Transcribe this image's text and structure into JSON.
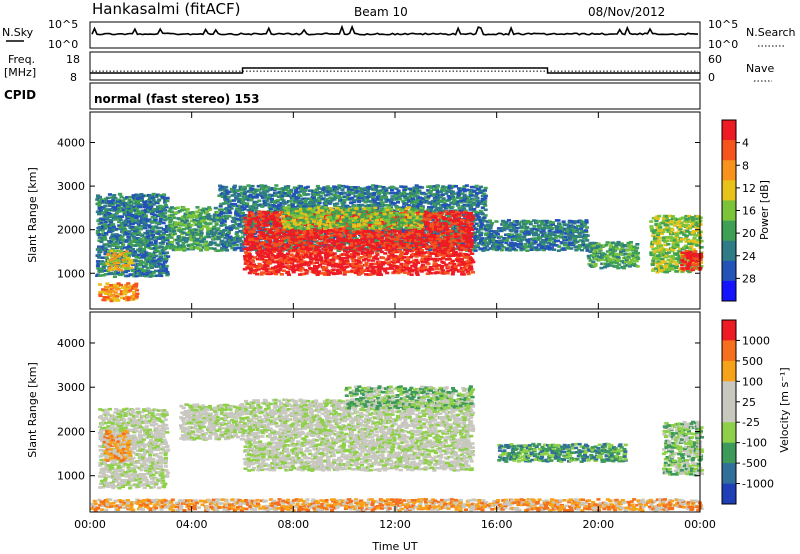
{
  "header": {
    "station": "Hankasalmi (fitACF)",
    "beam": "Beam 10",
    "date": "08/Nov/2012"
  },
  "strip_panels": {
    "nsky_label": "N.Sky",
    "nsky_ticks": [
      "10^5",
      "10^0"
    ],
    "nsearch_label": "N.Search",
    "nsearch_ticks": [
      "10^5",
      "10^0"
    ],
    "freq_label_line1": "Freq.",
    "freq_label_line2": "[MHz]",
    "freq_ticks": [
      "18",
      "8"
    ],
    "nave_label": "Nave",
    "nave_ticks": [
      "60",
      "0"
    ],
    "cpid_label": "CPID",
    "cpid_text": "normal (fast stereo) 153",
    "freq_level_mhz": [
      {
        "start": "00:00",
        "end": "06:00",
        "value": 10.5
      },
      {
        "start": "06:00",
        "end": "18:00",
        "value": 12.3
      },
      {
        "start": "18:00",
        "end": "24:00",
        "value": 10.5
      }
    ],
    "nave_level": 19
  },
  "chart_data": [
    {
      "type": "heatmap",
      "name": "power-panel",
      "ylabel": "Slant Range [km]",
      "xlabel": "",
      "xticks": [
        "00:00",
        "04:00",
        "08:00",
        "12:00",
        "16:00",
        "20:00",
        "00:00"
      ],
      "yticks": [
        "1000",
        "2000",
        "3000",
        "4000"
      ],
      "xlim_hours": [
        0,
        24
      ],
      "ylim_km": [
        180,
        4700
      ],
      "colorbar": {
        "label": "Power [dB]",
        "tick_labels": [
          "4",
          "8",
          "12",
          "16",
          "20",
          "24",
          "28"
        ],
        "range": [
          0,
          32
        ],
        "colors": [
          "#1414ff",
          "#2353b7",
          "#2f7c86",
          "#3ea055",
          "#7bc43a",
          "#e6c21b",
          "#f7921c",
          "#f5551d",
          "#ee1b24"
        ]
      },
      "regions": [
        {
          "t0": 0.2,
          "t1": 3.0,
          "r0": 900,
          "r1": 2800,
          "level": 2
        },
        {
          "t0": 0.3,
          "t1": 1.8,
          "r0": 350,
          "r1": 750,
          "level": 6
        },
        {
          "t0": 0.6,
          "t1": 1.6,
          "r0": 1050,
          "r1": 1500,
          "level": 5
        },
        {
          "t0": 3.0,
          "t1": 5.0,
          "r0": 1500,
          "r1": 2500,
          "level": 3
        },
        {
          "t0": 5.0,
          "t1": 15.5,
          "r0": 1500,
          "r1": 3000,
          "level": 2
        },
        {
          "t0": 6.0,
          "t1": 15.0,
          "r0": 950,
          "r1": 2400,
          "level": 8
        },
        {
          "t0": 7.5,
          "t1": 13.0,
          "r0": 2000,
          "r1": 2500,
          "level": 4
        },
        {
          "t0": 15.5,
          "t1": 19.5,
          "r0": 1500,
          "r1": 2200,
          "level": 2
        },
        {
          "t0": 19.5,
          "t1": 21.5,
          "r0": 1100,
          "r1": 1700,
          "level": 3
        },
        {
          "t0": 22.0,
          "t1": 24.0,
          "r0": 1000,
          "r1": 2300,
          "level": 4
        },
        {
          "t0": 23.2,
          "t1": 24.0,
          "r0": 1050,
          "r1": 1500,
          "level": 8
        }
      ]
    },
    {
      "type": "heatmap",
      "name": "velocity-panel",
      "ylabel": "Slant Range [km]",
      "xlabel": "Time UT",
      "xticks": [
        "00:00",
        "04:00",
        "08:00",
        "12:00",
        "16:00",
        "20:00",
        "00:00"
      ],
      "yticks": [
        "1000",
        "2000",
        "3000",
        "4000"
      ],
      "xlim_hours": [
        0,
        24
      ],
      "ylim_km": [
        180,
        4700
      ],
      "colorbar": {
        "label": "Velocity [m s⁻¹]",
        "tick_labels": [
          "1000",
          "500",
          "100",
          "25",
          "-25",
          "-100",
          "-500",
          "-1000"
        ],
        "range": [
          -1200,
          1200
        ],
        "colors": [
          "#1f3fb7",
          "#2f6f99",
          "#3e9a5a",
          "#8fd04a",
          "#c8c8c0",
          "#c8c8c0",
          "#f7a21b",
          "#f5701c",
          "#ee1b24"
        ]
      },
      "regions": [
        {
          "t0": 0.3,
          "t1": 3.0,
          "r0": 700,
          "r1": 2500,
          "level": 4
        },
        {
          "t0": 0.5,
          "t1": 1.5,
          "r0": 1300,
          "r1": 2000,
          "level": 6
        },
        {
          "t0": 3.5,
          "t1": 6.0,
          "r0": 1800,
          "r1": 2600,
          "level": 4
        },
        {
          "t0": 6.0,
          "t1": 15.0,
          "r0": 1100,
          "r1": 2700,
          "level": 4
        },
        {
          "t0": 10.0,
          "t1": 15.0,
          "r0": 2500,
          "r1": 3000,
          "level": 3
        },
        {
          "t0": 16.0,
          "t1": 21.0,
          "r0": 1300,
          "r1": 1700,
          "level": 2
        },
        {
          "t0": 22.5,
          "t1": 24.0,
          "r0": 1000,
          "r1": 2200,
          "level": 3
        },
        {
          "t0": 0.0,
          "t1": 24.0,
          "r0": 200,
          "r1": 450,
          "level": 6
        }
      ]
    }
  ]
}
